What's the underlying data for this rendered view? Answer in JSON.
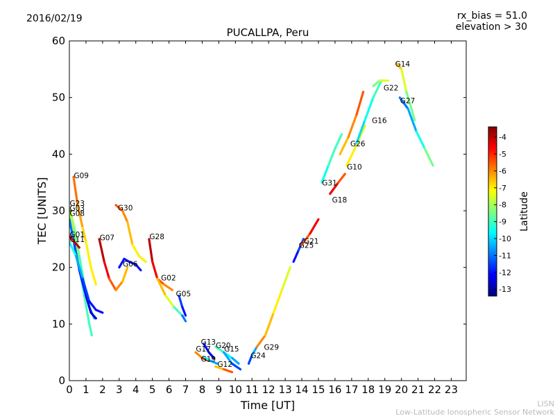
{
  "header": {
    "date": "2016/02/19",
    "rx_bias": "rx_bias = 51.0",
    "elevation": "elevation > 30"
  },
  "footer": {
    "network_short": "LISN",
    "network_long": "Low-Latitude Ionospheric Sensor Network"
  },
  "colorbar": {
    "label": "Latitude",
    "min": -13.4,
    "max": -3.4,
    "ticks": [
      "-4",
      "-5",
      "-6",
      "-7",
      "-8",
      "-9",
      "-10",
      "-11",
      "-12",
      "-13"
    ],
    "tick_values": [
      -4,
      -5,
      -6,
      -7,
      -8,
      -9,
      -10,
      -11,
      -12,
      -13
    ],
    "colormap": "jet",
    "stops": [
      "#00007f",
      "#0000ff",
      "#007fff",
      "#00ffff",
      "#7fff7f",
      "#ffff00",
      "#ff7f00",
      "#ff0000",
      "#7f0000"
    ]
  },
  "chart_data": {
    "type": "scatter",
    "title": "PUCALLPA, Peru",
    "xlabel": "Time [UT]",
    "ylabel": "TEC [UNITS]",
    "xlim": [
      0,
      23.9
    ],
    "ylim": [
      0,
      60
    ],
    "xticks": [
      0,
      1,
      2,
      3,
      4,
      5,
      6,
      7,
      8,
      9,
      10,
      11,
      12,
      13,
      14,
      15,
      16,
      17,
      18,
      19,
      20,
      21,
      22,
      23
    ],
    "xtick_labels": [
      "0",
      "1",
      "2",
      "3",
      "4",
      "5",
      "6",
      "7",
      "8",
      "9",
      "10",
      "11",
      "12",
      "13",
      "14",
      "15",
      "16",
      "17",
      "18",
      "19",
      "20",
      "21",
      "22",
      "23"
    ],
    "yticks": [
      0,
      10,
      20,
      30,
      40,
      50,
      60
    ],
    "ytick_labels": [
      "0",
      "10",
      "20",
      "30",
      "40",
      "50",
      "60"
    ],
    "series": [
      {
        "name": "G09",
        "points": [
          [
            0.25,
            36
          ],
          [
            0.5,
            31
          ],
          [
            0.8,
            27
          ],
          [
            1.0,
            24.5
          ],
          [
            1.3,
            20
          ],
          [
            1.6,
            17
          ]
        ],
        "lat": [
          -5.5,
          -6,
          -6.5,
          -7,
          -7,
          -7
        ]
      },
      {
        "name": "G23",
        "points": [
          [
            0,
            30.5
          ],
          [
            0.3,
            27
          ],
          [
            0.6,
            22
          ],
          [
            0.9,
            17
          ],
          [
            1.2,
            13
          ],
          [
            1.5,
            11
          ]
        ],
        "lat": [
          -8,
          -8,
          -9,
          -9,
          -10,
          -11
        ]
      },
      {
        "name": "G03",
        "points": [
          [
            0,
            29.5
          ],
          [
            0.3,
            25
          ],
          [
            0.6,
            20
          ],
          [
            0.9,
            15
          ],
          [
            1.2,
            10
          ],
          [
            1.35,
            8
          ]
        ],
        "lat": [
          -8,
          -8,
          -9,
          -9,
          -9,
          -9
        ]
      },
      {
        "name": "G08",
        "points": [
          [
            0,
            28.5
          ],
          [
            0.3,
            24
          ],
          [
            0.6,
            19.5
          ],
          [
            1.0,
            15
          ],
          [
            1.3,
            12
          ],
          [
            1.6,
            11
          ]
        ],
        "lat": [
          -11,
          -11,
          -12,
          -12,
          -13,
          -12
        ]
      },
      {
        "name": "G01",
        "points": [
          [
            0,
            25.5
          ],
          [
            0.3,
            24.5
          ],
          [
            0.6,
            23.5
          ]
        ],
        "lat": [
          -5,
          -4,
          -4
        ]
      },
      {
        "name": "G11",
        "points": [
          [
            0,
            24.5
          ],
          [
            0.4,
            22
          ],
          [
            0.8,
            18
          ],
          [
            1.2,
            14
          ],
          [
            1.6,
            12.5
          ],
          [
            2.0,
            12
          ]
        ],
        "lat": [
          -9,
          -10,
          -11,
          -12,
          -12,
          -12
        ]
      },
      {
        "name": "G07",
        "points": [
          [
            1.8,
            25
          ],
          [
            2.1,
            21
          ],
          [
            2.4,
            18
          ],
          [
            2.8,
            16
          ],
          [
            3.2,
            17.5
          ],
          [
            3.5,
            20
          ]
        ],
        "lat": [
          -4,
          -4,
          -5,
          -6,
          -6,
          -7
        ]
      },
      {
        "name": "G30",
        "points": [
          [
            2.8,
            31
          ],
          [
            3.2,
            30
          ],
          [
            3.5,
            28
          ],
          [
            3.8,
            24
          ],
          [
            4.2,
            22
          ],
          [
            4.6,
            21
          ]
        ],
        "lat": [
          -5,
          -6,
          -6,
          -7,
          -7,
          -7
        ]
      },
      {
        "name": "G06",
        "points": [
          [
            3.0,
            20
          ],
          [
            3.3,
            21.5
          ],
          [
            3.6,
            21
          ],
          [
            4.0,
            20.5
          ],
          [
            4.3,
            19.5
          ]
        ],
        "lat": [
          -12,
          -12,
          -12,
          -12,
          -12
        ]
      },
      {
        "name": "G28",
        "points": [
          [
            4.8,
            25
          ],
          [
            5.0,
            21
          ],
          [
            5.3,
            18
          ],
          [
            5.7,
            17
          ],
          [
            6.2,
            16
          ]
        ],
        "lat": [
          -4,
          -4,
          -5,
          -6,
          -6
        ]
      },
      {
        "name": "G02",
        "points": [
          [
            5.3,
            18
          ],
          [
            5.8,
            15
          ],
          [
            6.3,
            13
          ],
          [
            6.8,
            11.5
          ],
          [
            7.0,
            10.5
          ]
        ],
        "lat": [
          -6,
          -7,
          -8,
          -10,
          -12
        ]
      },
      {
        "name": "G05",
        "points": [
          [
            6.6,
            15
          ],
          [
            6.8,
            13
          ],
          [
            7.0,
            11.5
          ]
        ],
        "lat": [
          -11,
          -12,
          -12
        ]
      },
      {
        "name": "G13",
        "points": [
          [
            8.1,
            6.5
          ],
          [
            8.4,
            5
          ],
          [
            8.7,
            4
          ]
        ],
        "lat": [
          -12,
          -12,
          -13
        ]
      },
      {
        "name": "G17",
        "points": [
          [
            7.6,
            5
          ],
          [
            8.0,
            4
          ],
          [
            8.4,
            3.5
          ]
        ],
        "lat": [
          -7,
          -5,
          -4
        ]
      },
      {
        "name": "G19",
        "points": [
          [
            8.1,
            4.2
          ],
          [
            8.5,
            3.5
          ],
          [
            8.9,
            3
          ]
        ],
        "lat": [
          -9,
          -10,
          -11
        ]
      },
      {
        "name": "G20",
        "points": [
          [
            8.8,
            6
          ],
          [
            9.3,
            5
          ],
          [
            9.8,
            4
          ],
          [
            10.2,
            3
          ]
        ],
        "lat": [
          -9,
          -9,
          -10,
          -11
        ]
      },
      {
        "name": "G15",
        "points": [
          [
            9.3,
            5
          ],
          [
            9.8,
            3
          ],
          [
            10.3,
            2
          ]
        ],
        "lat": [
          -10,
          -11,
          -12
        ]
      },
      {
        "name": "G12",
        "points": [
          [
            8.8,
            2.5
          ],
          [
            9.3,
            2
          ],
          [
            9.8,
            1.5
          ]
        ],
        "lat": [
          -7,
          -6,
          -5
        ]
      },
      {
        "name": "G24",
        "points": [
          [
            10.8,
            3
          ],
          [
            11.0,
            4.5
          ],
          [
            11.3,
            6
          ]
        ],
        "lat": [
          -12,
          -11,
          -10
        ]
      },
      {
        "name": "G29",
        "points": [
          [
            11.3,
            6
          ],
          [
            11.8,
            8
          ],
          [
            12.3,
            12
          ],
          [
            12.8,
            16
          ],
          [
            13.3,
            20
          ]
        ],
        "lat": [
          -6,
          -6,
          -7,
          -7,
          -8
        ]
      },
      {
        "name": "G25",
        "points": [
          [
            13.5,
            21
          ],
          [
            13.8,
            23
          ],
          [
            14.1,
            25
          ]
        ],
        "lat": [
          -12,
          -12,
          -11
        ]
      },
      {
        "name": "G21",
        "points": [
          [
            14.0,
            24
          ],
          [
            14.5,
            26
          ],
          [
            15.0,
            28.5
          ]
        ],
        "lat": [
          -6,
          -5,
          -4
        ]
      },
      {
        "name": "G31",
        "points": [
          [
            15.2,
            35
          ],
          [
            15.6,
            38
          ],
          [
            16.0,
            41
          ],
          [
            16.4,
            43.5
          ]
        ],
        "lat": [
          -10,
          -9,
          -9,
          -9
        ]
      },
      {
        "name": "G18",
        "points": [
          [
            15.7,
            33
          ],
          [
            16.2,
            35
          ],
          [
            16.6,
            36.5
          ]
        ],
        "lat": [
          -4,
          -5,
          -6
        ]
      },
      {
        "name": "G10",
        "points": [
          [
            16.7,
            38
          ],
          [
            17.2,
            41
          ],
          [
            17.8,
            45
          ]
        ],
        "lat": [
          -7,
          -7,
          -8
        ]
      },
      {
        "name": "G26",
        "points": [
          [
            16.3,
            40
          ],
          [
            16.8,
            43
          ],
          [
            17.3,
            47
          ],
          [
            17.7,
            51
          ]
        ],
        "lat": [
          -7,
          -6,
          -6,
          -5
        ]
      },
      {
        "name": "G16",
        "points": [
          [
            17.3,
            42
          ],
          [
            17.8,
            46
          ],
          [
            18.3,
            50
          ],
          [
            18.8,
            53
          ]
        ],
        "lat": [
          -10,
          -10,
          -9,
          -9
        ]
      },
      {
        "name": "G22",
        "points": [
          [
            18.3,
            52
          ],
          [
            18.7,
            53
          ],
          [
            19.2,
            53
          ]
        ],
        "lat": [
          -9,
          -8,
          -7
        ]
      },
      {
        "name": "G14",
        "points": [
          [
            19.7,
            56
          ],
          [
            20.0,
            55
          ],
          [
            20.3,
            51
          ],
          [
            20.8,
            46
          ]
        ],
        "lat": [
          -6,
          -7,
          -8,
          -9
        ]
      },
      {
        "name": "G27",
        "points": [
          [
            19.9,
            50
          ],
          [
            20.4,
            48
          ],
          [
            20.9,
            44
          ],
          [
            21.4,
            41
          ],
          [
            21.9,
            38
          ]
        ],
        "lat": [
          -11,
          -11,
          -10,
          -9,
          -8
        ]
      }
    ],
    "labels": [
      {
        "text": "G09",
        "x": 0.25,
        "y": 36.2
      },
      {
        "text": "G23",
        "x": 0.0,
        "y": 31.3
      },
      {
        "text": "G03",
        "x": 0.0,
        "y": 30.4
      },
      {
        "text": "G08",
        "x": 0.0,
        "y": 29.5
      },
      {
        "text": "G01",
        "x": 0.0,
        "y": 25.8
      },
      {
        "text": "G11",
        "x": 0.0,
        "y": 24.9
      },
      {
        "text": "G07",
        "x": 1.8,
        "y": 25.2
      },
      {
        "text": "G30",
        "x": 2.9,
        "y": 30.5
      },
      {
        "text": "G06",
        "x": 3.2,
        "y": 20.6
      },
      {
        "text": "G28",
        "x": 4.8,
        "y": 25.4
      },
      {
        "text": "G02",
        "x": 5.5,
        "y": 18.1
      },
      {
        "text": "G05",
        "x": 6.4,
        "y": 15.3
      },
      {
        "text": "G13",
        "x": 7.9,
        "y": 6.8
      },
      {
        "text": "G17",
        "x": 7.6,
        "y": 5.6
      },
      {
        "text": "G20",
        "x": 8.8,
        "y": 6.2
      },
      {
        "text": "G15",
        "x": 9.3,
        "y": 5.6
      },
      {
        "text": "G19",
        "x": 7.9,
        "y": 3.8
      },
      {
        "text": "G12",
        "x": 8.9,
        "y": 2.9
      },
      {
        "text": "G24",
        "x": 10.9,
        "y": 4.4
      },
      {
        "text": "G29",
        "x": 11.7,
        "y": 5.9
      },
      {
        "text": "G21",
        "x": 14.1,
        "y": 24.6
      },
      {
        "text": "G25",
        "x": 13.8,
        "y": 23.9
      },
      {
        "text": "G31",
        "x": 15.2,
        "y": 34.9
      },
      {
        "text": "G18",
        "x": 15.8,
        "y": 31.9
      },
      {
        "text": "G10",
        "x": 16.7,
        "y": 37.7
      },
      {
        "text": "G26",
        "x": 16.9,
        "y": 41.8
      },
      {
        "text": "G16",
        "x": 18.2,
        "y": 45.9
      },
      {
        "text": "G22",
        "x": 18.9,
        "y": 51.7
      },
      {
        "text": "G14",
        "x": 19.6,
        "y": 55.9
      },
      {
        "text": "G27",
        "x": 19.9,
        "y": 49.4
      }
    ]
  }
}
